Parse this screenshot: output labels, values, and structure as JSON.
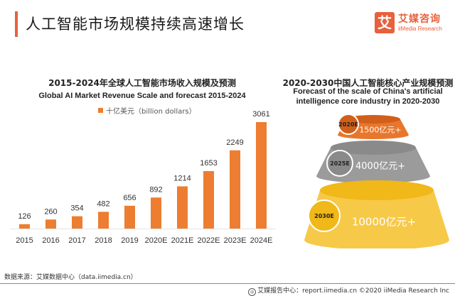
{
  "header": {
    "title": "人工智能市场规模持续高速增长",
    "logo": {
      "glyph": "艾",
      "cn": "艾媒咨询",
      "en": "iiMedia Research",
      "color": "#e8603c"
    }
  },
  "chart_data": [
    {
      "type": "bar",
      "title": "2015-2024年全球人工智能市场收入规模及预测",
      "subtitle": "Global AI Market Revenue Scale and forecast 2015-2024",
      "legend": "十亿美元（billion dollars）",
      "legend_position": "top",
      "categories": [
        "2015",
        "2016",
        "2017",
        "2018",
        "2019",
        "2020E",
        "2021E",
        "2022E",
        "2023E",
        "2024E"
      ],
      "values": [
        126,
        260,
        354,
        482,
        656,
        892,
        1214,
        1653,
        2249,
        3061
      ],
      "xlabel": "",
      "ylabel": "",
      "ylim": [
        0,
        3061
      ],
      "grid": false,
      "color": "#ed7d31"
    },
    {
      "type": "table",
      "title": "2020-2030中国人工智能核心产业规模预测",
      "subtitle_lines": [
        "Forecast of the scale of China's artificial",
        "intelligence core industry in 2020-2030"
      ],
      "tiers": [
        {
          "year": "2020E",
          "value_label": "1500亿元+",
          "value": 1500,
          "color": "#e8762c"
        },
        {
          "year": "2025E",
          "value_label": "4000亿元+",
          "value": 4000,
          "color": "#9b9b9b"
        },
        {
          "year": "2030E",
          "value_label": "10000亿元+",
          "value": 10000,
          "color": "#f7c948"
        }
      ]
    }
  ],
  "footer": {
    "source": "数据来源：艾媒数据中心（data.iimedia.cn）",
    "credit": "艾媒报告中心：report.iimedia.cn  ©2020  iiMedia Research Inc"
  }
}
